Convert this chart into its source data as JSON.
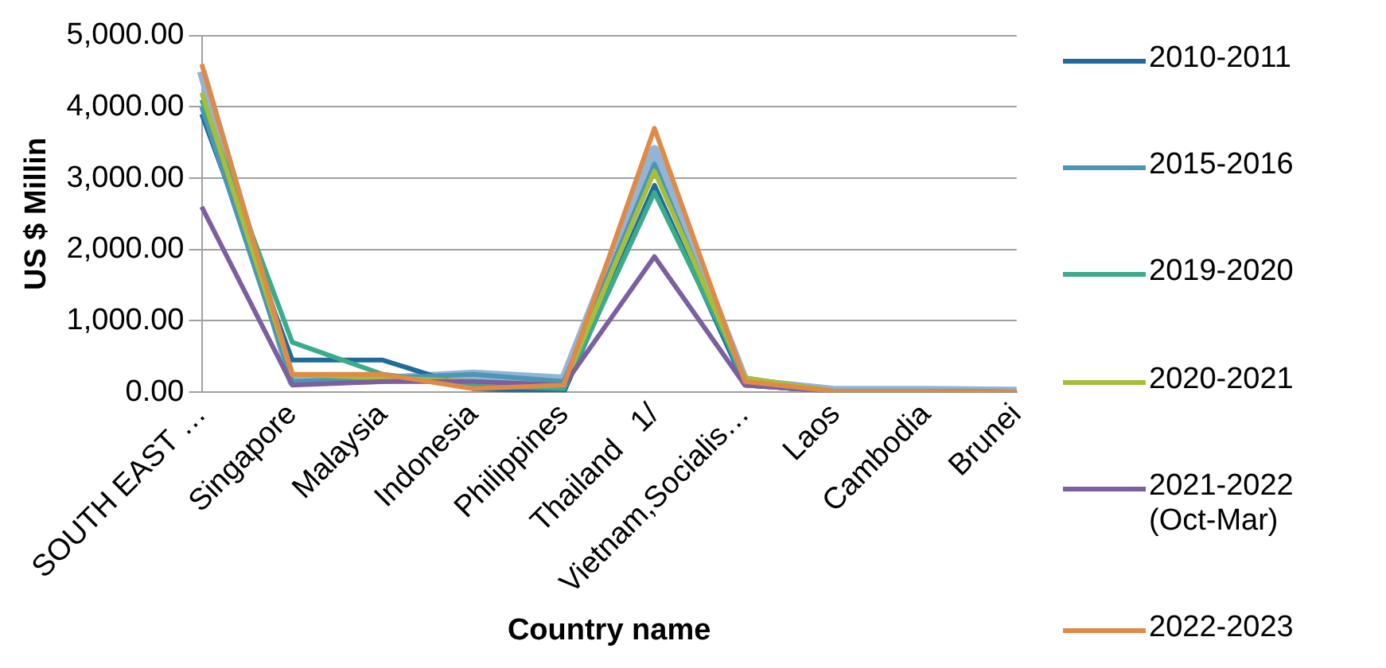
{
  "chart_data": {
    "type": "line",
    "xlabel": "Country name",
    "ylabel": "US $ Millin",
    "categories": [
      "SOUTH EAST …",
      "Singapore",
      "Malaysia",
      "Indonesia",
      "Philippines",
      "Thailand   1/",
      "Vietnam,Socialis…",
      "Laos",
      "Cambodia",
      "Brunei"
    ],
    "series": [
      {
        "name": "2010-2011",
        "color": "#1f6b9e",
        "values": [
          3900,
          450,
          450,
          50,
          0,
          2900,
          100,
          10,
          10,
          0
        ]
      },
      {
        "name": "2015-2016",
        "color": "#4a97b5",
        "values": [
          4000,
          150,
          200,
          250,
          150,
          3200,
          100,
          10,
          10,
          0
        ]
      },
      {
        "name": "2019-2020",
        "color": "#3aab8c",
        "values": [
          4100,
          700,
          250,
          100,
          50,
          2800,
          200,
          10,
          10,
          0
        ]
      },
      {
        "name": "2020-2021",
        "color": "#a5bf3a",
        "values": [
          4200,
          250,
          200,
          150,
          100,
          3100,
          200,
          10,
          10,
          0
        ]
      },
      {
        "name": "2021-2022 (Oct-Mar)",
        "color": "#7b5fa0",
        "values": [
          2600,
          100,
          150,
          150,
          100,
          1900,
          100,
          10,
          10,
          0
        ]
      },
      {
        "name": "2022-2023",
        "color": "#e08a45",
        "values": [
          4600,
          250,
          250,
          50,
          100,
          3700,
          150,
          10,
          10,
          0
        ]
      },
      {
        "color": "#93b4d6",
        "values": [
          4500,
          150,
          180,
          250,
          180,
          3400,
          150,
          20,
          20,
          10
        ]
      }
    ],
    "ylim": [
      0,
      5000
    ],
    "yticks": [
      {
        "value": 0,
        "label": "0.00"
      },
      {
        "value": 1000,
        "label": "1,000.00"
      },
      {
        "value": 2000,
        "label": "2,000.00"
      },
      {
        "value": 3000,
        "label": "3,000.00"
      },
      {
        "value": 4000,
        "label": "4,000.00"
      },
      {
        "value": 5000,
        "label": "5,000.00"
      }
    ],
    "grid": "y",
    "legend": "right",
    "marker": "none",
    "line_style": "solid"
  }
}
